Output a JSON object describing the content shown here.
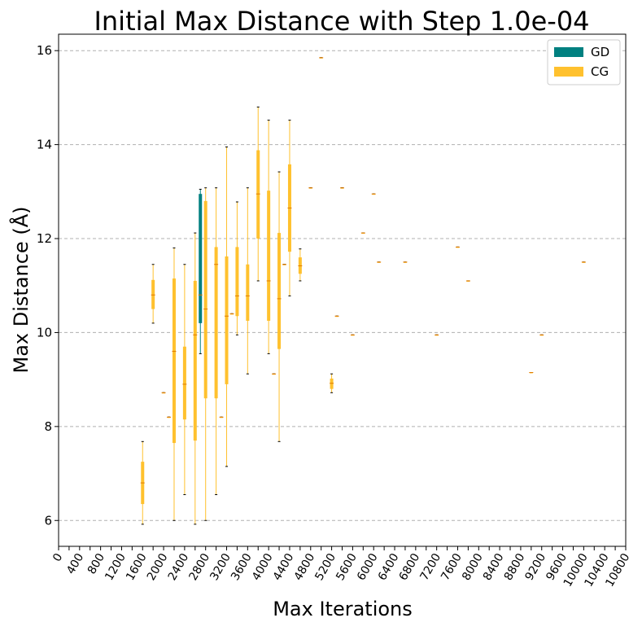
{
  "chart_data": {
    "type": "box",
    "title": "Initial Max Distance with Step 1.0e-04",
    "xlabel": "Max Iterations",
    "ylabel": "Max Distance (Å)",
    "xlim": [
      0,
      10800
    ],
    "ylim": [
      5.45,
      16.35
    ],
    "grid": "y-dashed",
    "legend_position": "top-right",
    "x_ticks": [
      0,
      400,
      800,
      1200,
      1600,
      2000,
      2400,
      2800,
      3200,
      3600,
      4000,
      4400,
      4800,
      5200,
      5600,
      6000,
      6400,
      6800,
      7200,
      7600,
      8000,
      8400,
      8800,
      9200,
      9600,
      10000,
      10400,
      10800
    ],
    "x_tick_labels": [
      "0",
      "400",
      "800",
      "1200",
      "1600",
      "2000",
      "2400",
      "2800",
      "3200",
      "3600",
      "4000",
      "4400",
      "4800",
      "5200",
      "5600",
      "6000",
      "6400",
      "6800",
      "7200",
      "7600",
      "8000",
      "8400",
      "8800",
      "9200",
      "9600",
      "10000",
      "10400",
      "10800"
    ],
    "y_ticks": [
      6,
      8,
      10,
      12,
      14,
      16
    ],
    "y_tick_labels": [
      "6",
      "8",
      "10",
      "12",
      "14",
      "16"
    ],
    "series": [
      {
        "name": "GD",
        "color": "#008080",
        "boxes": [
          {
            "x": 2700,
            "min": 9.55,
            "q1": 10.2,
            "median": 10.8,
            "q3": 12.95,
            "max": 13.05
          }
        ]
      },
      {
        "name": "CG",
        "color": "#FFC12E",
        "boxes": [
          {
            "x": 1600,
            "min": 5.92,
            "q1": 6.35,
            "median": 6.8,
            "q3": 7.25,
            "max": 7.68
          },
          {
            "x": 1800,
            "min": 10.2,
            "q1": 10.5,
            "median": 10.8,
            "q3": 11.12,
            "max": 11.45
          },
          {
            "x": 2000,
            "min": 8.72,
            "q1": 8.72,
            "median": 8.72,
            "q3": 8.72,
            "max": 8.72
          },
          {
            "x": 2100,
            "min": 8.2,
            "q1": 8.2,
            "median": 8.2,
            "q3": 8.2,
            "max": 8.2
          },
          {
            "x": 2200,
            "min": 6.0,
            "q1": 7.65,
            "median": 9.6,
            "q3": 11.15,
            "max": 11.8
          },
          {
            "x": 2400,
            "min": 6.55,
            "q1": 8.15,
            "median": 8.9,
            "q3": 9.7,
            "max": 11.45
          },
          {
            "x": 2600,
            "min": 5.92,
            "q1": 7.7,
            "median": 9.95,
            "q3": 11.1,
            "max": 12.12
          },
          {
            "x": 2800,
            "min": 6.0,
            "q1": 8.6,
            "median": 10.5,
            "q3": 12.8,
            "max": 13.08
          },
          {
            "x": 3000,
            "min": 6.55,
            "q1": 8.6,
            "median": 11.45,
            "q3": 11.82,
            "max": 13.08
          },
          {
            "x": 3100,
            "min": 8.2,
            "q1": 8.2,
            "median": 8.2,
            "q3": 8.2,
            "max": 8.2
          },
          {
            "x": 3200,
            "min": 7.15,
            "q1": 8.9,
            "median": 10.35,
            "q3": 11.62,
            "max": 13.95
          },
          {
            "x": 3300,
            "min": 10.4,
            "q1": 10.4,
            "median": 10.4,
            "q3": 10.4,
            "max": 10.4
          },
          {
            "x": 3400,
            "min": 9.95,
            "q1": 10.35,
            "median": 10.78,
            "q3": 11.82,
            "max": 12.78
          },
          {
            "x": 3600,
            "min": 9.12,
            "q1": 10.25,
            "median": 10.78,
            "q3": 11.45,
            "max": 13.08
          },
          {
            "x": 3800,
            "min": 11.1,
            "q1": 12.0,
            "median": 12.95,
            "q3": 13.88,
            "max": 14.8
          },
          {
            "x": 4000,
            "min": 9.55,
            "q1": 10.25,
            "median": 11.1,
            "q3": 13.02,
            "max": 14.52
          },
          {
            "x": 4100,
            "min": 9.12,
            "q1": 9.12,
            "median": 9.12,
            "q3": 9.12,
            "max": 9.12
          },
          {
            "x": 4200,
            "min": 7.68,
            "q1": 9.65,
            "median": 10.72,
            "q3": 12.12,
            "max": 13.42
          },
          {
            "x": 4300,
            "min": 11.45,
            "q1": 11.45,
            "median": 11.45,
            "q3": 11.45,
            "max": 11.45
          },
          {
            "x": 4400,
            "min": 10.78,
            "q1": 11.72,
            "median": 12.65,
            "q3": 13.58,
            "max": 14.52
          },
          {
            "x": 4600,
            "min": 11.1,
            "q1": 11.25,
            "median": 11.42,
            "q3": 11.6,
            "max": 11.78
          },
          {
            "x": 4800,
            "min": 13.08,
            "q1": 13.08,
            "median": 13.08,
            "q3": 13.08,
            "max": 13.08
          },
          {
            "x": 5000,
            "min": 15.85,
            "q1": 15.85,
            "median": 15.85,
            "q3": 15.85,
            "max": 15.85
          },
          {
            "x": 5200,
            "min": 8.72,
            "q1": 8.8,
            "median": 8.92,
            "q3": 9.02,
            "max": 9.12
          },
          {
            "x": 5300,
            "min": 10.35,
            "q1": 10.35,
            "median": 10.35,
            "q3": 10.35,
            "max": 10.35
          },
          {
            "x": 5400,
            "min": 13.08,
            "q1": 13.08,
            "median": 13.08,
            "q3": 13.08,
            "max": 13.08
          },
          {
            "x": 5600,
            "min": 9.95,
            "q1": 9.95,
            "median": 9.95,
            "q3": 9.95,
            "max": 9.95
          },
          {
            "x": 5800,
            "min": 12.12,
            "q1": 12.12,
            "median": 12.12,
            "q3": 12.12,
            "max": 12.12
          },
          {
            "x": 6000,
            "min": 12.95,
            "q1": 12.95,
            "median": 12.95,
            "q3": 12.95,
            "max": 12.95
          },
          {
            "x": 6100,
            "min": 11.5,
            "q1": 11.5,
            "median": 11.5,
            "q3": 11.5,
            "max": 11.5
          },
          {
            "x": 6600,
            "min": 11.5,
            "q1": 11.5,
            "median": 11.5,
            "q3": 11.5,
            "max": 11.5
          },
          {
            "x": 7200,
            "min": 9.95,
            "q1": 9.95,
            "median": 9.95,
            "q3": 9.95,
            "max": 9.95
          },
          {
            "x": 7600,
            "min": 11.82,
            "q1": 11.82,
            "median": 11.82,
            "q3": 11.82,
            "max": 11.82
          },
          {
            "x": 7800,
            "min": 11.1,
            "q1": 11.1,
            "median": 11.1,
            "q3": 11.1,
            "max": 11.1
          },
          {
            "x": 9000,
            "min": 9.15,
            "q1": 9.15,
            "median": 9.15,
            "q3": 9.15,
            "max": 9.15
          },
          {
            "x": 9200,
            "min": 9.95,
            "q1": 9.95,
            "median": 9.95,
            "q3": 9.95,
            "max": 9.95
          },
          {
            "x": 10000,
            "min": 11.5,
            "q1": 11.5,
            "median": 11.5,
            "q3": 11.5,
            "max": 11.5
          }
        ]
      }
    ],
    "legend": [
      {
        "label": "GD",
        "color": "#008080"
      },
      {
        "label": "CG",
        "color": "#FFC12E"
      }
    ]
  }
}
